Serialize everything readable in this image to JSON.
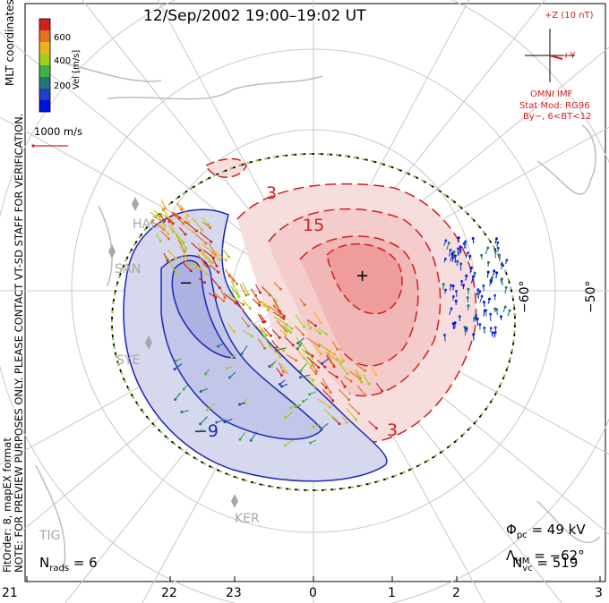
{
  "title": "12/Sep/2002 19:00–19:02 UT",
  "notice_lines": [
    "MLT coordinates",
    "NOTE: FOR PREVIEW PURPOSES ONLY. PLEASE CONTACT VT-SD STAFF FOR VERIFICATION.",
    "NOTE: FOR PREVIEW PURPOSES ONLY. PLEASE CONTACT VT-SD STAFF FOR VERIFICATION.",
    "FitOrder: 8, mapEX format"
  ],
  "notice": {
    "coords": "MLT coordinates",
    "warning": "NOTE: FOR PREVIEW PURPOSES ONLY. PLEASE CONTACT VT-SD STAFF FOR VERIFICATION.",
    "fit": "FitOrder: 8, mapEX format"
  },
  "velocity_legend": {
    "unit_label": "Vel [m/s]",
    "ticks": [
      "600",
      "400",
      "200"
    ],
    "colors": [
      "#d22020",
      "#e87020",
      "#f0b020",
      "#a0d020",
      "#40b040",
      "#207878",
      "#2040c0",
      "#0010e0"
    ],
    "scale_label": "1000 m/s"
  },
  "imf": {
    "z_label": "+Z (10 nT)",
    "y_label": "+Y",
    "source": "OMNI IMF",
    "model": "Stat Mod: RG96",
    "condition": "By−, 6<BT<12"
  },
  "stats": {
    "phi_pc": "Φpc = 49 kV",
    "lambda_hm": "ΛHM = −62°",
    "n_vc": "Nvc = 519",
    "n_rads": "Nrads = 6"
  },
  "stats_parts": {
    "phi_sym": "Φ",
    "phi_sub": "pc",
    "phi_val": " = 49 kV",
    "lam_sym": "Λ",
    "lam_sub": "HM",
    "lam_val": " = −62°",
    "nvc_sym": "N",
    "nvc_sub": "vc",
    "nvc_val": " = 519",
    "nr_sym": "N",
    "nr_sub": "rads",
    "nr_val": " = 6"
  },
  "contour_labels": {
    "pos1": "3",
    "pos2": "15",
    "pos3": "3",
    "neg1": "−9",
    "minus": "−",
    "plus": "+"
  },
  "latitude_labels": [
    "−60°",
    "−50°"
  ],
  "mlt_labels": [
    "21",
    "22",
    "23",
    "0",
    "1",
    "2",
    "3"
  ],
  "radar_labels": [
    "HAL",
    "SAN",
    "SYE",
    "KER",
    "TIG"
  ],
  "colors": {
    "positive_potential": "#d21e1e",
    "negative_potential": "#1e28b4",
    "boundary": "#000000"
  }
}
